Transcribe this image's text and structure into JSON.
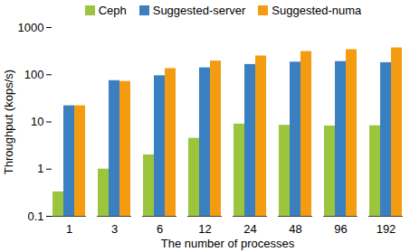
{
  "chart_data": {
    "type": "bar",
    "categories": [
      1,
      3,
      6,
      12,
      24,
      48,
      96,
      192
    ],
    "series": [
      {
        "name": "Ceph",
        "color": "#9bc53d",
        "values": [
          0.33,
          1.0,
          2.0,
          4.5,
          9,
          8.5,
          8.2,
          8.3
        ]
      },
      {
        "name": "Suggested-server",
        "color": "#3a80c0",
        "values": [
          22,
          75,
          95,
          140,
          165,
          185,
          190,
          180
        ]
      },
      {
        "name": "Suggested-numa",
        "color": "#f39c12",
        "values": [
          22,
          72,
          135,
          195,
          250,
          310,
          340,
          370
        ]
      }
    ],
    "x_label": "The number of processes",
    "y_label": "Throughput (kops/s)",
    "ylim": [
      0.1,
      1000
    ],
    "yticks": [
      0.1,
      1,
      10,
      100,
      1000
    ],
    "log": "y",
    "grid": false,
    "legend": "top"
  }
}
